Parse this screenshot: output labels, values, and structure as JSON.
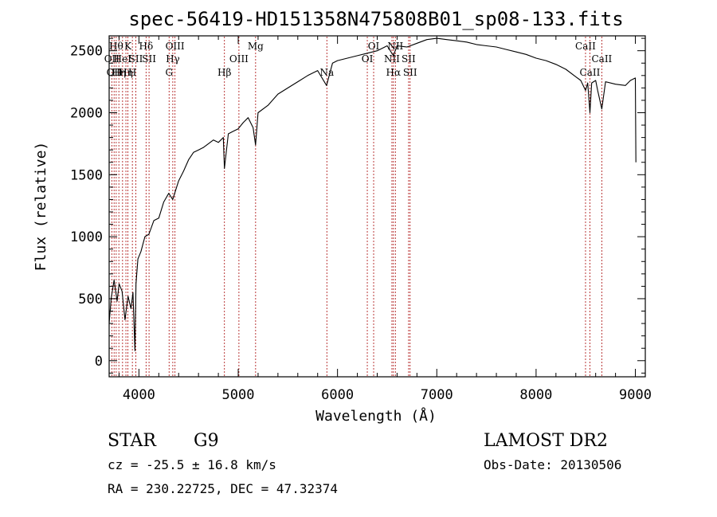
{
  "chart_data": {
    "type": "line",
    "title": "spec-56419-HD151358N475808B01_sp08-133.fits",
    "xlabel": "Wavelength (Å)",
    "ylabel": "Flux (relative)",
    "xlim": [
      3700,
      9100
    ],
    "ylim": [
      -130,
      2620
    ],
    "xticks": [
      4000,
      5000,
      6000,
      7000,
      8000,
      9000
    ],
    "yticks": [
      0,
      500,
      1000,
      1500,
      2000,
      2500
    ],
    "grid": false,
    "series": [
      {
        "name": "flux",
        "x": [
          3700,
          3720,
          3750,
          3780,
          3800,
          3830,
          3860,
          3890,
          3920,
          3940,
          3960,
          3970,
          3990,
          4020,
          4060,
          4100,
          4150,
          4200,
          4250,
          4300,
          4340,
          4400,
          4450,
          4500,
          4550,
          4600,
          4650,
          4700,
          4750,
          4800,
          4850,
          4861,
          4900,
          4950,
          5000,
          5050,
          5100,
          5150,
          5175,
          5200,
          5300,
          5400,
          5500,
          5600,
          5700,
          5800,
          5890,
          5950,
          6000,
          6100,
          6200,
          6300,
          6400,
          6500,
          6563,
          6600,
          6700,
          6800,
          6900,
          7000,
          7100,
          7200,
          7300,
          7400,
          7500,
          7600,
          7700,
          7800,
          7900,
          8000,
          8100,
          8200,
          8300,
          8400,
          8450,
          8498,
          8520,
          8542,
          8560,
          8600,
          8620,
          8662,
          8700,
          8800,
          8900,
          8950,
          9000,
          9005
        ],
        "values": [
          300,
          500,
          650,
          480,
          620,
          560,
          330,
          520,
          420,
          550,
          80,
          620,
          820,
          880,
          1000,
          1020,
          1130,
          1150,
          1280,
          1350,
          1300,
          1450,
          1530,
          1620,
          1680,
          1700,
          1720,
          1750,
          1780,
          1760,
          1800,
          1550,
          1830,
          1850,
          1870,
          1920,
          1960,
          1880,
          1740,
          2000,
          2060,
          2150,
          2200,
          2250,
          2300,
          2340,
          2220,
          2400,
          2420,
          2440,
          2460,
          2480,
          2500,
          2540,
          2460,
          2540,
          2530,
          2560,
          2590,
          2600,
          2590,
          2580,
          2570,
          2550,
          2540,
          2530,
          2510,
          2490,
          2470,
          2440,
          2420,
          2390,
          2350,
          2290,
          2260,
          2180,
          2240,
          2000,
          2240,
          2260,
          2180,
          2030,
          2250,
          2230,
          2220,
          2260,
          2280,
          1600
        ]
      }
    ],
    "line_marks": [
      {
        "wavelength": 3727,
        "label": "OII",
        "row": 2
      },
      {
        "wavelength": 3750,
        "label": "OII",
        "row": 3
      },
      {
        "wavelength": 3771,
        "label": "Hθ",
        "row": 1
      },
      {
        "wavelength": 3798,
        "label": "Hη",
        "row": 3
      },
      {
        "wavelength": 3835,
        "label": "HeI",
        "row": 2
      },
      {
        "wavelength": 3869,
        "label": "Hη",
        "row": 3
      },
      {
        "wavelength": 3889,
        "label": "K",
        "row": 1
      },
      {
        "wavelength": 3934,
        "label": "H",
        "row": 3
      },
      {
        "wavelength": 3969,
        "label": "SII",
        "row": 2
      },
      {
        "wavelength": 4072,
        "label": "Hδ",
        "row": 1
      },
      {
        "wavelength": 4102,
        "label": "SII",
        "row": 2
      },
      {
        "wavelength": 4304,
        "label": "G",
        "row": 3
      },
      {
        "wavelength": 4341,
        "label": "Hγ",
        "row": 2
      },
      {
        "wavelength": 4363,
        "label": "OIII",
        "row": 1
      },
      {
        "wavelength": 4861,
        "label": "Hβ",
        "row": 3
      },
      {
        "wavelength": 5007,
        "label": "OIII",
        "row": 2
      },
      {
        "wavelength": 5175,
        "label": "Mg",
        "row": 1
      },
      {
        "wavelength": 5893,
        "label": "Na",
        "row": 3
      },
      {
        "wavelength": 6300,
        "label": "OI",
        "row": 2
      },
      {
        "wavelength": 6364,
        "label": "OI",
        "row": 1
      },
      {
        "wavelength": 6548,
        "label": "NII",
        "row": 2
      },
      {
        "wavelength": 6563,
        "label": "Hα",
        "row": 3
      },
      {
        "wavelength": 6583,
        "label": "NII",
        "row": 1
      },
      {
        "wavelength": 6716,
        "label": "SII",
        "row": 2
      },
      {
        "wavelength": 6731,
        "label": "SII",
        "row": 3
      },
      {
        "wavelength": 8498,
        "label": "CaII",
        "row": 1
      },
      {
        "wavelength": 8542,
        "label": "CaII",
        "row": 3
      },
      {
        "wavelength": 8662,
        "label": "CaII",
        "row": 2
      }
    ]
  },
  "info": {
    "object_class": "STAR",
    "subclass": "G9",
    "survey": "LAMOST DR2",
    "redshift": "cz = -25.5 ± 16.8 km/s",
    "obs_date": "Obs-Date: 20130506",
    "coords": "RA = 230.22725, DEC =  47.32374"
  },
  "colors": {
    "line_marker": "#b22222",
    "spectrum": "#000000"
  }
}
